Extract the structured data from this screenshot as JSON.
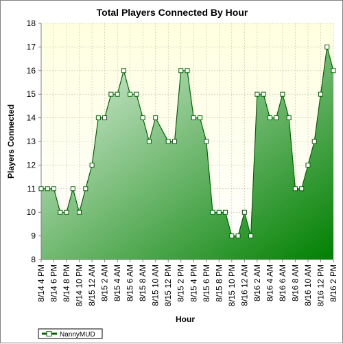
{
  "chart_data": {
    "type": "area",
    "title": "Total Players Connected By Hour",
    "xlabel": "Hour",
    "ylabel": "Players Connected",
    "ylim": [
      8,
      18
    ],
    "yticks": [
      "8",
      "9",
      "10",
      "11",
      "12",
      "13",
      "14",
      "15",
      "16",
      "17",
      "18"
    ],
    "x_tick_labels": [
      "8/14 4 PM",
      "8/14 6 PM",
      "8/14 8 PM",
      "8/14 10 PM",
      "8/15 12 AM",
      "8/15 2 AM",
      "8/15 4 AM",
      "8/15 6 AM",
      "8/15 8 AM",
      "8/15 10 AM",
      "8/15 12 PM",
      "8/15 2 PM",
      "8/15 4 PM",
      "8/15 6 PM",
      "8/15 8 PM",
      "8/15 10 PM",
      "8/16 12 AM",
      "8/16 2 AM",
      "8/16 4 AM",
      "8/16 6 AM",
      "8/16 8 AM",
      "8/16 10 AM",
      "8/16 12 PM",
      "8/16 2 PM"
    ],
    "grid": true,
    "legend_position": "bottom-left",
    "series": [
      {
        "name": "NannyMUD",
        "values": [
          11,
          11,
          11,
          10,
          10,
          11,
          10,
          11,
          12,
          14,
          14,
          15,
          15,
          16,
          15,
          15,
          14,
          13,
          14,
          13.5,
          13,
          13,
          16,
          16,
          14,
          14,
          13,
          10,
          10,
          10,
          9,
          9,
          10,
          9,
          15,
          15,
          14,
          14,
          15,
          14,
          11,
          11,
          12,
          13,
          15,
          17,
          16
        ],
        "markers": [
          true,
          true,
          true,
          true,
          true,
          true,
          true,
          true,
          true,
          true,
          true,
          true,
          true,
          true,
          true,
          true,
          true,
          true,
          true,
          false,
          true,
          true,
          true,
          true,
          true,
          true,
          true,
          true,
          true,
          true,
          true,
          true,
          true,
          true,
          true,
          true,
          true,
          true,
          true,
          true,
          true,
          true,
          true,
          true,
          true,
          true,
          true
        ]
      }
    ],
    "colors": {
      "line": "#006400",
      "fill_light": "#e6f3e6",
      "fill_dark": "#008000",
      "plot_bg_top": "#ffffe0",
      "plot_bg_bottom": "#ffffff",
      "grid": "#c0c0a0",
      "marker_fill": "#ffffff"
    }
  }
}
